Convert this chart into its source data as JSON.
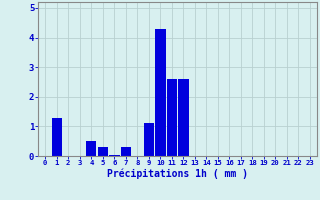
{
  "hours": [
    0,
    1,
    2,
    3,
    4,
    5,
    6,
    7,
    8,
    9,
    10,
    11,
    12,
    13,
    14,
    15,
    16,
    17,
    18,
    19,
    20,
    21,
    22,
    23
  ],
  "values": [
    0,
    1.3,
    0,
    0,
    0.5,
    0.3,
    0.05,
    0.3,
    0,
    1.1,
    4.3,
    2.6,
    2.6,
    0,
    0,
    0,
    0,
    0,
    0,
    0,
    0,
    0,
    0,
    0
  ],
  "bar_color": "#0000dd",
  "bg_color": "#d8f0f0",
  "grid_color": "#b8d0d0",
  "xlabel": "Précipitations 1h ( mm )",
  "xlabel_color": "#0000cc",
  "tick_color": "#0000cc",
  "ylim": [
    0,
    5.2
  ],
  "yticks": [
    0,
    1,
    2,
    3,
    4,
    5
  ],
  "spine_color": "#888888"
}
